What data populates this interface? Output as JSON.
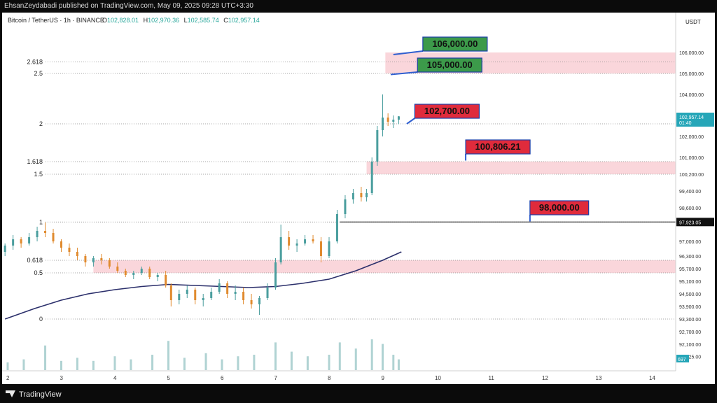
{
  "header": {
    "publisher_text": "EhsanZeydabadi published on TradingView.com, May 09, 2025 09:28 UTC+3:30"
  },
  "footer": {
    "logo_text": "TradingView"
  },
  "legend": {
    "symbol": "Bitcoin / TetherUS · 1h · BINANCE",
    "open_label": "O",
    "open_value": "102,828.01",
    "high_label": "H",
    "high_value": "102,970.36",
    "low_label": "L",
    "low_value": "102,585.74",
    "close_label": "C",
    "close_value": "102,957.14"
  },
  "colors": {
    "up": "#4a9e9e",
    "down": "#e08a2e",
    "ma": "#2b2f6b",
    "zone": "#f8c8cf",
    "green_label": "#3c9a4a",
    "red_label": "#e02b3c",
    "price_badge": "#26a6b8"
  },
  "chart_data": {
    "type": "candlestick",
    "currency_label": "USDT",
    "y_ticks": [
      "106,000.00",
      "105,000.00",
      "104,000.00",
      "103,000.00",
      "102,000.00",
      "101,000.00",
      "100,200.00",
      "99,400.00",
      "98,600.00",
      "97,923.05",
      "97,000.00",
      "96,300.00",
      "95,700.00",
      "95,100.00",
      "94,500.00",
      "93,900.00",
      "93,300.00",
      "92,700.00",
      "92,100.00",
      "91,525.00"
    ],
    "y_tick_values": [
      106000,
      105000,
      104000,
      103000,
      102000,
      101000,
      100200,
      99400,
      98600,
      97923.05,
      97000,
      96300,
      95700,
      95100,
      94500,
      93900,
      93300,
      92700,
      92100,
      91525
    ],
    "x_ticks": [
      "2",
      "3",
      "4",
      "5",
      "6",
      "7",
      "8",
      "9",
      "10",
      "11",
      "12",
      "13",
      "14"
    ],
    "x_tick_values": [
      2,
      3,
      4,
      5,
      6,
      7,
      8,
      9,
      10,
      11,
      12,
      13,
      14
    ],
    "last_price": "102,957.14",
    "last_price_countdown": "01:40",
    "volume_badge": "697",
    "fib_levels": [
      {
        "label": "2.618",
        "price": 105550
      },
      {
        "label": "2.5",
        "price": 105000
      },
      {
        "label": "2",
        "price": 102600
      },
      {
        "label": "1.618",
        "price": 100800
      },
      {
        "label": "1.5",
        "price": 100200
      },
      {
        "label": "1",
        "price": 97923.05
      },
      {
        "label": "0.618",
        "price": 96100
      },
      {
        "label": "0.5",
        "price": 95500
      },
      {
        "label": "0",
        "price": 93300
      }
    ],
    "zones": [
      {
        "x_from": 9.05,
        "price_top": 106000,
        "price_bottom": 105000
      },
      {
        "x_from": 8.7,
        "price_top": 100806,
        "price_bottom": 100200
      },
      {
        "x_from": 3.6,
        "price_top": 96100,
        "price_bottom": 95500
      }
    ],
    "horizontal_line": {
      "x_from": 8.2,
      "price": 97923.05
    },
    "callouts": [
      {
        "text": "106,000.00",
        "style": "green",
        "x": 9.75,
        "y": 106400,
        "pointer_x": 9.2,
        "pointer_y": 105900
      },
      {
        "text": "105,000.00",
        "style": "green",
        "x": 9.65,
        "y": 105400,
        "pointer_x": 9.15,
        "pointer_y": 104950
      },
      {
        "text": "102,700.00",
        "style": "red",
        "x": 9.6,
        "y": 103200,
        "pointer_x": 9.45,
        "pointer_y": 102600
      },
      {
        "text": "100,806.21",
        "style": "red",
        "x": 10.55,
        "y": 101500,
        "pointer_x": 10.55,
        "pointer_y": 100850
      },
      {
        "text": "98,000.00",
        "style": "red",
        "x": 11.75,
        "y": 98600,
        "pointer_x": 11.75,
        "pointer_y": 97950
      }
    ],
    "ohlc_hourly_approx": [
      [
        1.95,
        96500,
        96900,
        96300,
        96800
      ],
      [
        2.1,
        96800,
        97300,
        96600,
        97100
      ],
      [
        2.25,
        97100,
        97200,
        96700,
        96900
      ],
      [
        2.4,
        96900,
        97400,
        96800,
        97200
      ],
      [
        2.55,
        97200,
        97700,
        97000,
        97500
      ],
      [
        2.7,
        97500,
        97900,
        97200,
        97400
      ],
      [
        2.85,
        97400,
        97600,
        96900,
        97000
      ],
      [
        3.0,
        97000,
        97100,
        96500,
        96700
      ],
      [
        3.15,
        96700,
        96900,
        96300,
        96500
      ],
      [
        3.3,
        96500,
        96700,
        96100,
        96300
      ],
      [
        3.45,
        96300,
        96400,
        95800,
        96000
      ],
      [
        3.6,
        96000,
        96300,
        95800,
        96200
      ],
      [
        3.75,
        96200,
        96400,
        95900,
        96100
      ],
      [
        3.9,
        96100,
        96200,
        95700,
        95800
      ],
      [
        4.05,
        95800,
        96000,
        95500,
        95600
      ],
      [
        4.2,
        95600,
        95700,
        95300,
        95400
      ],
      [
        4.35,
        95400,
        95600,
        95200,
        95500
      ],
      [
        4.5,
        95500,
        95800,
        95400,
        95700
      ],
      [
        4.65,
        95700,
        95800,
        95200,
        95300
      ],
      [
        4.8,
        95300,
        95500,
        95100,
        95400
      ],
      [
        4.95,
        95400,
        95600,
        94800,
        94900
      ],
      [
        5.05,
        94900,
        95000,
        93900,
        94200
      ],
      [
        5.2,
        94200,
        94700,
        94000,
        94500
      ],
      [
        5.35,
        94500,
        94900,
        94300,
        94700
      ],
      [
        5.5,
        94700,
        94800,
        94000,
        94200
      ],
      [
        5.65,
        94200,
        94500,
        93900,
        94300
      ],
      [
        5.8,
        94300,
        94800,
        94200,
        94600
      ],
      [
        5.95,
        94600,
        95200,
        94500,
        95000
      ],
      [
        6.1,
        95000,
        95100,
        94300,
        94500
      ],
      [
        6.25,
        94500,
        94900,
        94200,
        94600
      ],
      [
        6.4,
        94600,
        94800,
        94000,
        94200
      ],
      [
        6.55,
        94200,
        94500,
        93800,
        94000
      ],
      [
        6.7,
        94000,
        94400,
        93500,
        94300
      ],
      [
        6.85,
        94300,
        95000,
        94200,
        94800
      ],
      [
        7.0,
        94800,
        96200,
        94700,
        96000
      ],
      [
        7.1,
        96000,
        97800,
        95900,
        97200
      ],
      [
        7.25,
        97200,
        97500,
        96600,
        96800
      ],
      [
        7.4,
        96800,
        97100,
        96500,
        96900
      ],
      [
        7.55,
        96900,
        97300,
        96800,
        97100
      ],
      [
        7.7,
        97100,
        97300,
        96900,
        97000
      ],
      [
        7.85,
        97000,
        97200,
        96000,
        96300
      ],
      [
        8.0,
        96300,
        97200,
        96200,
        97000
      ],
      [
        8.15,
        97000,
        98500,
        96900,
        98300
      ],
      [
        8.3,
        98300,
        99200,
        98100,
        99000
      ],
      [
        8.45,
        99000,
        99500,
        98800,
        99300
      ],
      [
        8.6,
        99300,
        99600,
        98900,
        99100
      ],
      [
        8.7,
        99100,
        99500,
        98900,
        99300
      ],
      [
        8.8,
        99300,
        101000,
        99200,
        100800
      ],
      [
        8.9,
        100800,
        102500,
        100600,
        102300
      ],
      [
        9.0,
        102300,
        104000,
        102000,
        102900
      ],
      [
        9.1,
        102900,
        103100,
        102500,
        102700
      ],
      [
        9.2,
        102700,
        103000,
        102400,
        102800
      ],
      [
        9.3,
        102800,
        102970,
        102585,
        102957
      ]
    ],
    "moving_average_approx": [
      [
        1.95,
        93300
      ],
      [
        2.5,
        93800
      ],
      [
        3.0,
        94200
      ],
      [
        3.5,
        94500
      ],
      [
        4.0,
        94700
      ],
      [
        4.5,
        94850
      ],
      [
        5.0,
        94950
      ],
      [
        5.5,
        94900
      ],
      [
        6.0,
        94850
      ],
      [
        6.5,
        94800
      ],
      [
        7.0,
        94850
      ],
      [
        7.5,
        95000
      ],
      [
        8.0,
        95200
      ],
      [
        8.5,
        95600
      ],
      [
        9.0,
        96100
      ],
      [
        9.35,
        96500
      ]
    ],
    "volume_approx": [
      [
        2.0,
        0.25
      ],
      [
        2.3,
        0.35
      ],
      [
        2.7,
        0.8
      ],
      [
        3.0,
        0.3
      ],
      [
        3.3,
        0.4
      ],
      [
        3.6,
        0.3
      ],
      [
        4.0,
        0.45
      ],
      [
        4.3,
        0.35
      ],
      [
        4.7,
        0.5
      ],
      [
        5.0,
        0.95
      ],
      [
        5.3,
        0.4
      ],
      [
        5.7,
        0.55
      ],
      [
        6.0,
        0.35
      ],
      [
        6.3,
        0.45
      ],
      [
        6.6,
        0.5
      ],
      [
        7.0,
        0.9
      ],
      [
        7.3,
        0.6
      ],
      [
        7.6,
        0.45
      ],
      [
        8.0,
        0.5
      ],
      [
        8.2,
        0.9
      ],
      [
        8.5,
        0.7
      ],
      [
        8.8,
        1.0
      ],
      [
        9.0,
        0.85
      ],
      [
        9.2,
        0.5
      ],
      [
        9.3,
        0.35
      ]
    ]
  }
}
